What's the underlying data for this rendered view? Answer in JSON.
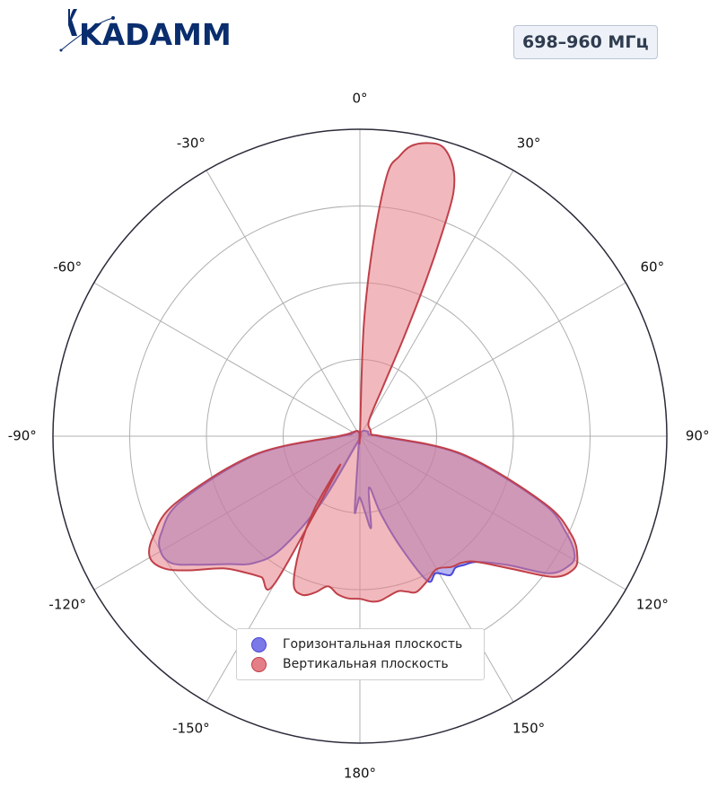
{
  "brand": {
    "logo_text": "KADAMM",
    "logo_color": "#0a2d6e"
  },
  "frequency_badge": "698–960 МГц",
  "chart_data": {
    "type": "polar-area",
    "angle_ticks": [
      "0°",
      "30°",
      "60°",
      "90°",
      "120°",
      "150°",
      "180°",
      "-150°",
      "-120°",
      "-90°",
      "-60°",
      "-30°"
    ],
    "angle_tick_values": [
      0,
      30,
      60,
      90,
      120,
      150,
      180,
      -150,
      -120,
      -90,
      -60,
      -30
    ],
    "radial_rings": [
      0.25,
      0.5,
      0.75
    ],
    "r_max": 1.0,
    "grid": true,
    "legend_position": "bottom-center",
    "series": [
      {
        "name": "Горизонтальная плоскость",
        "color": "#4a47d4",
        "fill": "#7b78e8",
        "points": [
          [
            0,
            0.0
          ],
          [
            10,
            0.01
          ],
          [
            30,
            0.02
          ],
          [
            60,
            0.03
          ],
          [
            80,
            0.03
          ],
          [
            90,
            0.06
          ],
          [
            100,
            0.33
          ],
          [
            110,
            0.63
          ],
          [
            115,
            0.74
          ],
          [
            119,
            0.8
          ],
          [
            122,
            0.8
          ],
          [
            126,
            0.76
          ],
          [
            131,
            0.64
          ],
          [
            137,
            0.56
          ],
          [
            141,
            0.54
          ],
          [
            144,
            0.53
          ],
          [
            147,
            0.54
          ],
          [
            151,
            0.51
          ],
          [
            155,
            0.52
          ],
          [
            160,
            0.38
          ],
          [
            165,
            0.26
          ],
          [
            170,
            0.17
          ],
          [
            173,
            0.3
          ],
          [
            176,
            0.25
          ],
          [
            180,
            0.2
          ],
          [
            -178,
            0.22
          ],
          [
            -176,
            0.24
          ],
          [
            -170,
            0.02
          ],
          [
            -160,
            0.02
          ],
          [
            -150,
            0.25
          ],
          [
            -145,
            0.45
          ],
          [
            -140,
            0.54
          ],
          [
            -134,
            0.6
          ],
          [
            -128,
            0.68
          ],
          [
            -124,
            0.74
          ],
          [
            -120,
            0.75
          ],
          [
            -116,
            0.72
          ],
          [
            -110,
            0.62
          ],
          [
            -100,
            0.34
          ],
          [
            -90,
            0.06
          ],
          [
            -80,
            0.03
          ],
          [
            -30,
            0.02
          ],
          [
            -10,
            0.01
          ]
        ]
      },
      {
        "name": "Вертикальная плоскость",
        "color": "#c0404a",
        "fill": "#e57f87",
        "points": [
          [
            0,
            0.0
          ],
          [
            2,
            0.36
          ],
          [
            4,
            0.64
          ],
          [
            6,
            0.86
          ],
          [
            8,
            0.92
          ],
          [
            10,
            0.96
          ],
          [
            13,
            0.98
          ],
          [
            16,
            0.98
          ],
          [
            19,
            0.93
          ],
          [
            21,
            0.85
          ],
          [
            22,
            0.72
          ],
          [
            23,
            0.55
          ],
          [
            24,
            0.35
          ],
          [
            25,
            0.18
          ],
          [
            30,
            0.06
          ],
          [
            60,
            0.04
          ],
          [
            85,
            0.04
          ],
          [
            90,
            0.07
          ],
          [
            100,
            0.34
          ],
          [
            110,
            0.64
          ],
          [
            115,
            0.76
          ],
          [
            119,
            0.81
          ],
          [
            122,
            0.82
          ],
          [
            126,
            0.78
          ],
          [
            131,
            0.66
          ],
          [
            137,
            0.56
          ],
          [
            141,
            0.53
          ],
          [
            145,
            0.52
          ],
          [
            150,
            0.5
          ],
          [
            155,
            0.52
          ],
          [
            160,
            0.54
          ],
          [
            163,
            0.53
          ],
          [
            166,
            0.52
          ],
          [
            170,
            0.53
          ],
          [
            173,
            0.54
          ],
          [
            176,
            0.54
          ],
          [
            180,
            0.53
          ],
          [
            -176,
            0.53
          ],
          [
            -172,
            0.52
          ],
          [
            -168,
            0.5
          ],
          [
            -164,
            0.53
          ],
          [
            -160,
            0.55
          ],
          [
            -156,
            0.53
          ],
          [
            -152,
            0.42
          ],
          [
            -148,
            0.28
          ],
          [
            -146,
            0.12
          ],
          [
            -150,
            0.55
          ],
          [
            -145,
            0.56
          ],
          [
            -140,
            0.58
          ],
          [
            -134,
            0.62
          ],
          [
            -128,
            0.71
          ],
          [
            -124,
            0.77
          ],
          [
            -120,
            0.79
          ],
          [
            -116,
            0.75
          ],
          [
            -110,
            0.64
          ],
          [
            -100,
            0.35
          ],
          [
            -90,
            0.07
          ],
          [
            -80,
            0.04
          ],
          [
            -30,
            0.02
          ],
          [
            -10,
            0.01
          ]
        ]
      }
    ]
  }
}
